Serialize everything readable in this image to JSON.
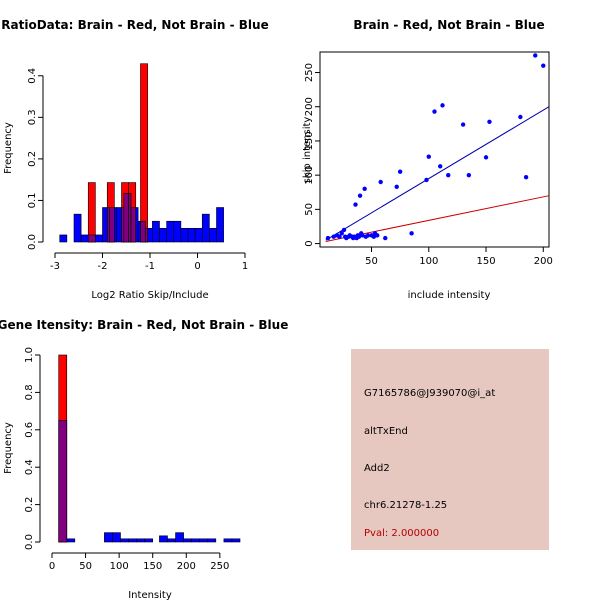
{
  "chart_data": [
    {
      "type": "bar",
      "title": "RatioData: Brain - Red, Not Brain - Blue",
      "xlabel": "Log2 Ratio Skip/Include",
      "ylabel": "Frequency",
      "xlim": [
        -3,
        1
      ],
      "ylim": [
        0,
        0.45
      ],
      "xticks": [
        -3,
        -2,
        -1,
        0,
        1
      ],
      "yticks": [
        0,
        0.1,
        0.2,
        0.3,
        0.4
      ],
      "xtick_labels": [
        "-3",
        "-2",
        "-1",
        "0",
        "1"
      ],
      "ytick_labels": [
        "0.0",
        "0.1",
        "0.2",
        "0.3",
        "0.4"
      ],
      "series": [
        {
          "name": "Not Brain",
          "color": "#0000ff",
          "bins": [
            [
              -2.9,
              -2.75,
              0.017
            ],
            [
              -2.6,
              -2.45,
              0.067
            ],
            [
              -2.45,
              -2.3,
              0.017
            ],
            [
              -2.3,
              -2.15,
              0.017
            ],
            [
              -2.15,
              -2.0,
              0.017
            ],
            [
              -2.0,
              -1.85,
              0.083
            ],
            [
              -1.85,
              -1.7,
              0.083
            ],
            [
              -1.7,
              -1.55,
              0.083
            ],
            [
              -1.55,
              -1.4,
              0.117
            ],
            [
              -1.4,
              -1.25,
              0.083
            ],
            [
              -1.25,
              -1.1,
              0.05
            ],
            [
              -1.1,
              -0.95,
              0.033
            ],
            [
              -0.95,
              -0.8,
              0.05
            ],
            [
              -0.8,
              -0.65,
              0.033
            ],
            [
              -0.65,
              -0.5,
              0.05
            ],
            [
              -0.5,
              -0.35,
              0.05
            ],
            [
              -0.35,
              -0.2,
              0.033
            ],
            [
              -0.2,
              -0.05,
              0.033
            ],
            [
              -0.05,
              0.1,
              0.033
            ],
            [
              0.1,
              0.25,
              0.067
            ],
            [
              0.25,
              0.4,
              0.033
            ],
            [
              0.4,
              0.55,
              0.083
            ]
          ]
        },
        {
          "name": "Brain",
          "color": "#ff0000",
          "bins": [
            [
              -2.3,
              -2.15,
              0.143
            ],
            [
              -1.9,
              -1.75,
              0.143
            ],
            [
              -1.6,
              -1.45,
              0.143
            ],
            [
              -1.45,
              -1.3,
              0.143
            ],
            [
              -1.2,
              -1.05,
              0.429
            ]
          ]
        }
      ]
    },
    {
      "type": "scatter",
      "title": "Brain - Red, Not Brain - Blue",
      "xlabel": "include intensity",
      "ylabel": "skip intensity",
      "xlim": [
        5,
        205
      ],
      "ylim": [
        -5,
        280
      ],
      "xticks": [
        50,
        100,
        150,
        200
      ],
      "yticks": [
        0,
        50,
        100,
        150,
        200,
        250
      ],
      "xtick_labels": [
        "50",
        "100",
        "150",
        "200"
      ],
      "ytick_labels": [
        "0",
        "50",
        "100",
        "150",
        "200",
        "250"
      ],
      "points": [
        [
          12,
          8
        ],
        [
          17,
          10
        ],
        [
          20,
          12
        ],
        [
          22,
          10
        ],
        [
          24,
          15
        ],
        [
          26,
          20
        ],
        [
          27,
          10
        ],
        [
          28,
          8
        ],
        [
          30,
          10
        ],
        [
          31,
          12
        ],
        [
          33,
          10
        ],
        [
          34,
          8
        ],
        [
          35,
          10
        ],
        [
          36,
          57
        ],
        [
          37,
          8
        ],
        [
          38,
          12
        ],
        [
          39,
          10
        ],
        [
          40,
          70
        ],
        [
          41,
          15
        ],
        [
          42,
          12
        ],
        [
          44,
          80
        ],
        [
          45,
          10
        ],
        [
          47,
          12
        ],
        [
          50,
          12
        ],
        [
          52,
          10
        ],
        [
          53,
          15
        ],
        [
          55,
          12
        ],
        [
          58,
          90
        ],
        [
          62,
          8
        ],
        [
          72,
          83
        ],
        [
          75,
          105
        ],
        [
          85,
          15
        ],
        [
          98,
          93
        ],
        [
          100,
          127
        ],
        [
          105,
          193
        ],
        [
          110,
          113
        ],
        [
          112,
          202
        ],
        [
          117,
          100
        ],
        [
          130,
          174
        ],
        [
          135,
          100
        ],
        [
          150,
          126
        ],
        [
          153,
          178
        ],
        [
          180,
          185
        ],
        [
          185,
          97
        ],
        [
          193,
          275
        ],
        [
          200,
          260
        ]
      ],
      "point_color": "#0000ff",
      "lines": [
        {
          "name": "Not Brain fit",
          "color": "#0000aa",
          "x": [
            10,
            205
          ],
          "y": [
            5,
            200
          ]
        },
        {
          "name": "Brain fit",
          "color": "#cc0000",
          "x": [
            10,
            205
          ],
          "y": [
            3,
            70
          ]
        }
      ]
    },
    {
      "type": "bar",
      "title": "Gene Itensity: Brain - Red, Not Brain - Blue",
      "xlabel": "Intensity",
      "ylabel": "Frequency",
      "xlim": [
        0,
        280
      ],
      "ylim": [
        0,
        1.0
      ],
      "xticks": [
        0,
        50,
        100,
        150,
        200,
        250
      ],
      "yticks": [
        0,
        0.2,
        0.4,
        0.6,
        0.8,
        1.0
      ],
      "xtick_labels": [
        "0",
        "50",
        "100",
        "150",
        "200",
        "250"
      ],
      "ytick_labels": [
        "0.0",
        "0.2",
        "0.4",
        "0.6",
        "0.8",
        "1.0"
      ],
      "series": [
        {
          "name": "Not Brain",
          "color": "#0000ff",
          "bins": [
            [
              10,
              22,
              0.65
            ],
            [
              22,
              34,
              0.017
            ],
            [
              78,
              90,
              0.05
            ],
            [
              90,
              102,
              0.05
            ],
            [
              102,
              114,
              0.017
            ],
            [
              114,
              126,
              0.017
            ],
            [
              126,
              138,
              0.017
            ],
            [
              138,
              150,
              0.017
            ],
            [
              160,
              172,
              0.033
            ],
            [
              172,
              184,
              0.017
            ],
            [
              184,
              196,
              0.05
            ],
            [
              196,
              208,
              0.017
            ],
            [
              208,
              220,
              0.017
            ],
            [
              220,
              232,
              0.017
            ],
            [
              232,
              244,
              0.017
            ],
            [
              256,
              268,
              0.017
            ],
            [
              268,
              280,
              0.017
            ]
          ]
        },
        {
          "name": "Brain",
          "color": "#ff0000",
          "bins": [
            [
              10,
              22,
              1.0
            ]
          ]
        }
      ]
    }
  ],
  "info_panel": {
    "background": "#e6c8c0",
    "probe_id": "G7165786@J939070@i_at",
    "event_type": "altTxEnd",
    "gene": "Add2",
    "location": "chr6.21278-1.25",
    "pval": "Pval: 2.000000"
  }
}
